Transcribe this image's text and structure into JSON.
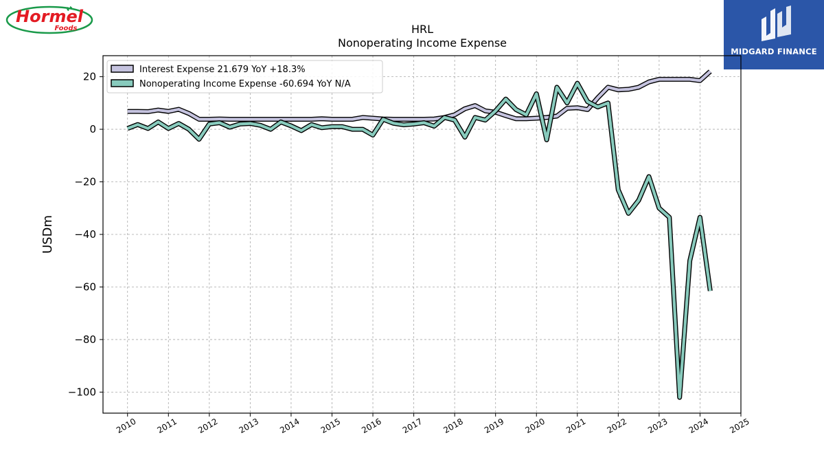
{
  "brand": {
    "logo_text": "Hormel",
    "logo_subtext": "Foods",
    "logo_color": "#e31b23",
    "logo_ring_color": "#1a9a4a"
  },
  "publisher": {
    "name": "MIDGARD FINANCE",
    "badge_color": "#2b56a8",
    "icon": "midgard-m-icon"
  },
  "chart_data": {
    "type": "line",
    "title": "HRL",
    "subtitle": "Nonoperating Income Expense",
    "ylabel": "USDm",
    "xlabel": "",
    "xlim": [
      2009.4,
      2025.0
    ],
    "ylim": [
      -108,
      28
    ],
    "x_ticks": [
      2010,
      2011,
      2012,
      2013,
      2014,
      2015,
      2016,
      2017,
      2018,
      2019,
      2020,
      2021,
      2022,
      2023,
      2024,
      2025
    ],
    "y_ticks": [
      20,
      0,
      -20,
      -40,
      -60,
      -80,
      -100
    ],
    "y_tick_labels": [
      "20",
      "0",
      "−20",
      "−40",
      "−60",
      "−80",
      "−100"
    ],
    "grid": true,
    "legend_position": "top-left",
    "series": [
      {
        "name": "Interest Expense  21.679 YoY +18.3%",
        "color": "#c5c3df",
        "x": [
          2010.0,
          2010.25,
          2010.5,
          2010.75,
          2011.0,
          2011.25,
          2011.5,
          2011.75,
          2012.0,
          2012.25,
          2012.5,
          2012.75,
          2013.0,
          2013.25,
          2013.5,
          2013.75,
          2014.0,
          2014.25,
          2014.5,
          2014.75,
          2015.0,
          2015.25,
          2015.5,
          2015.75,
          2016.0,
          2016.25,
          2016.5,
          2016.75,
          2017.0,
          2017.25,
          2017.5,
          2017.75,
          2018.0,
          2018.25,
          2018.5,
          2018.75,
          2019.0,
          2019.25,
          2019.5,
          2019.75,
          2020.0,
          2020.25,
          2020.5,
          2020.75,
          2021.0,
          2021.25,
          2021.5,
          2021.75,
          2022.0,
          2022.25,
          2022.5,
          2022.75,
          2023.0,
          2023.25,
          2023.5,
          2023.75,
          2024.0,
          2024.25
        ],
        "y": [
          6.8,
          6.8,
          6.7,
          7.3,
          6.8,
          7.6,
          6.0,
          3.8,
          3.8,
          3.9,
          3.8,
          3.8,
          3.8,
          3.8,
          3.8,
          3.8,
          3.8,
          3.8,
          3.8,
          4.0,
          3.8,
          3.8,
          3.8,
          4.5,
          4.2,
          3.9,
          3.8,
          3.8,
          3.8,
          3.8,
          3.9,
          4.5,
          5.5,
          7.8,
          9.0,
          7.0,
          6.5,
          5.2,
          4.0,
          4.0,
          4.2,
          4.5,
          5.0,
          8.0,
          8.2,
          7.5,
          12.0,
          16.0,
          15.0,
          15.2,
          16.0,
          18.0,
          19.0,
          19.0,
          19.0,
          19.0,
          18.5,
          22.0
        ]
      },
      {
        "name": "Nonoperating Income Expense  -60.694 YoY N/A",
        "color": "#88cbbd",
        "x": [
          2010.0,
          2010.25,
          2010.5,
          2010.75,
          2011.0,
          2011.25,
          2011.5,
          2011.75,
          2012.0,
          2012.25,
          2012.5,
          2012.75,
          2013.0,
          2013.25,
          2013.5,
          2013.75,
          2014.0,
          2014.25,
          2014.5,
          2014.75,
          2015.0,
          2015.25,
          2015.5,
          2015.75,
          2016.0,
          2016.25,
          2016.5,
          2016.75,
          2017.0,
          2017.25,
          2017.5,
          2017.75,
          2018.0,
          2018.25,
          2018.5,
          2018.75,
          2019.0,
          2019.25,
          2019.5,
          2019.75,
          2020.0,
          2020.25,
          2020.5,
          2020.75,
          2021.0,
          2021.25,
          2021.5,
          2021.75,
          2022.0,
          2022.25,
          2022.5,
          2022.75,
          2023.0,
          2023.25,
          2023.5,
          2023.75,
          2024.0,
          2024.25
        ],
        "y": [
          0.3,
          1.8,
          0.3,
          2.8,
          0.3,
          2.2,
          0.0,
          -3.8,
          2.0,
          2.5,
          0.8,
          2.0,
          2.2,
          1.5,
          0.0,
          2.8,
          1.3,
          -0.5,
          1.8,
          0.6,
          1.0,
          1.0,
          0.0,
          0.0,
          -2.2,
          3.8,
          2.3,
          1.7,
          2.0,
          2.5,
          1.2,
          4.5,
          3.5,
          -3.0,
          4.5,
          3.5,
          7.0,
          11.5,
          7.5,
          5.5,
          13.5,
          -4.0,
          16.0,
          10.0,
          17.5,
          10.5,
          8.5,
          10.0,
          -23.0,
          -32.0,
          -27.0,
          -18.0,
          -30.0,
          -33.5,
          -102.0,
          -50.0,
          -33.5,
          -61.5
        ]
      }
    ]
  }
}
